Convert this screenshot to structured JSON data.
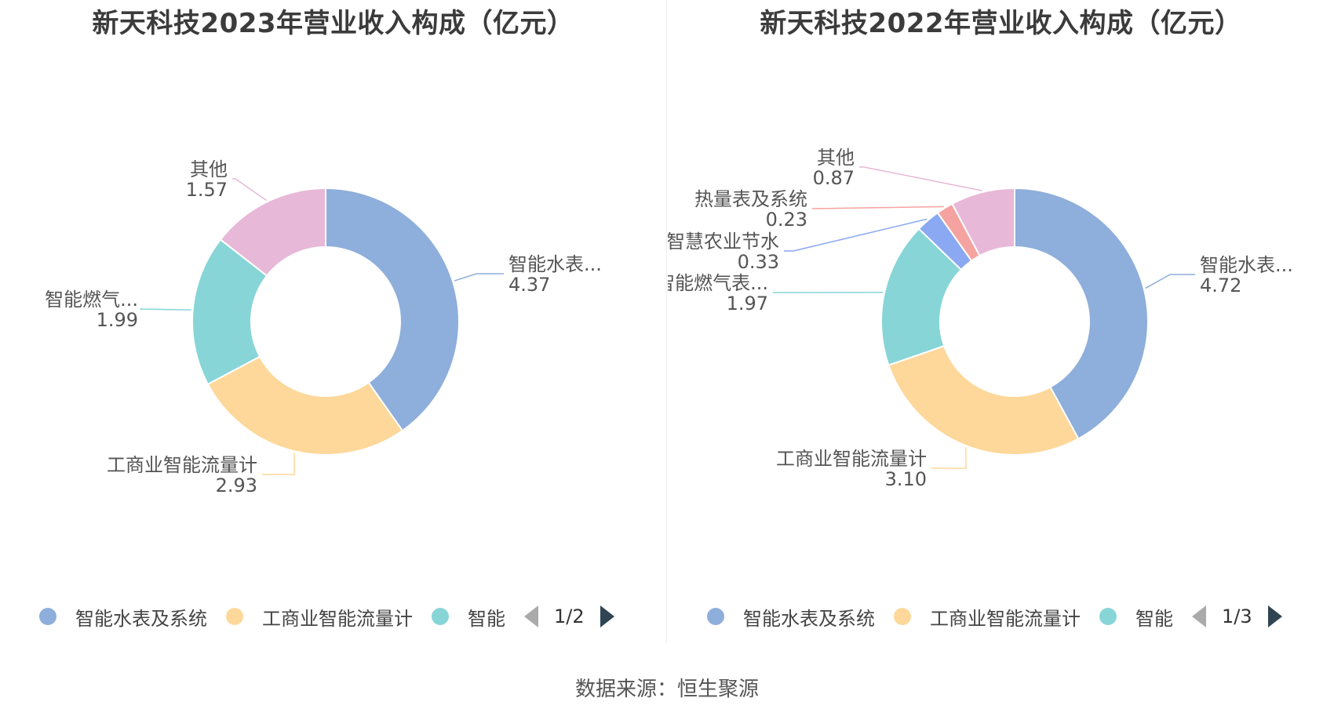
{
  "chart_data": [
    {
      "type": "donut",
      "title": "新天科技2023年营业收入构成（亿元）",
      "series": [
        {
          "name": "智能水表及系统",
          "label": "智能水表...",
          "value": 4.37,
          "value_label": "4.37",
          "color": "#8eaedb"
        },
        {
          "name": "工商业智能流量计",
          "label": "工商业智能流量计",
          "value": 2.93,
          "value_label": "2.93",
          "color": "#fdd89a"
        },
        {
          "name": "智能燃气表及系统",
          "label": "智能燃气...",
          "value": 1.99,
          "value_label": "1.99",
          "color": "#87d5d7"
        },
        {
          "name": "其他",
          "label": "其他",
          "value": 1.57,
          "value_label": "1.57",
          "color": "#e7b8d8"
        }
      ],
      "legend": {
        "items": [
          "智能水表及系统",
          "工商业智能流量计",
          "智能"
        ],
        "colors": [
          "#8eaedb",
          "#fdd89a",
          "#87d5d7"
        ],
        "page": "1/2",
        "position": "bottom"
      }
    },
    {
      "type": "donut",
      "title": "新天科技2022年营业收入构成（亿元）",
      "series": [
        {
          "name": "智能水表及系统",
          "label": "智能水表...",
          "value": 4.72,
          "value_label": "4.72",
          "color": "#8eaedb"
        },
        {
          "name": "工商业智能流量计",
          "label": "工商业智能流量计",
          "value": 3.1,
          "value_label": "3.10",
          "color": "#fdd89a"
        },
        {
          "name": "智能燃气表及系统",
          "label": "智能燃气表...",
          "value": 1.97,
          "value_label": "1.97",
          "color": "#87d5d7"
        },
        {
          "name": "智慧农业节水",
          "label": "智慧农业节水",
          "value": 0.33,
          "value_label": "0.33",
          "color": "#8aa9f2"
        },
        {
          "name": "热量表及系统",
          "label": "热量表及系统",
          "value": 0.23,
          "value_label": "0.23",
          "color": "#f5a3a0"
        },
        {
          "name": "其他",
          "label": "其他",
          "value": 0.87,
          "value_label": "0.87",
          "color": "#e7b8d8"
        }
      ],
      "legend": {
        "items": [
          "智能水表及系统",
          "工商业智能流量计",
          "智能"
        ],
        "colors": [
          "#8eaedb",
          "#fdd89a",
          "#87d5d7"
        ],
        "page": "1/3",
        "position": "bottom"
      }
    }
  ],
  "footer": {
    "source": "数据来源：恒生聚源"
  }
}
